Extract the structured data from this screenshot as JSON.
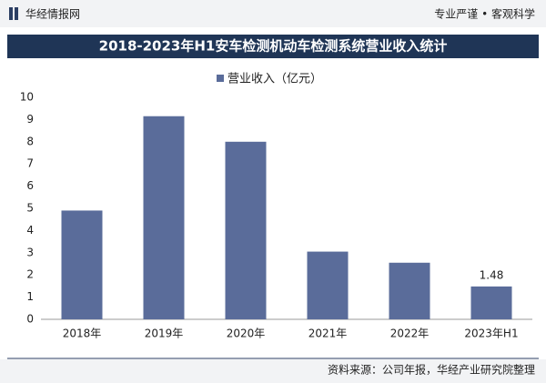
{
  "header": {
    "logo": "华经情报网",
    "slogan": "专业严谨 • 客观科学"
  },
  "chart_data": {
    "type": "bar",
    "title": "2018-2023年H1安车检测机动车检测系统营业收入统计",
    "categories": [
      "2018年",
      "2019年",
      "2020年",
      "2021年",
      "2022年",
      "2023年H1"
    ],
    "series": [
      {
        "name": "营业收入（亿元）",
        "color": "#5a6c9a",
        "values": [
          4.9,
          9.15,
          8.0,
          3.05,
          2.55,
          1.48
        ],
        "value_labels": [
          null,
          null,
          null,
          null,
          null,
          "1.48"
        ]
      }
    ],
    "ylim": [
      0,
      10
    ],
    "yticks": [
      0,
      1,
      2,
      3,
      4,
      5,
      6,
      7,
      8,
      9,
      10
    ],
    "grid": false
  },
  "footer": {
    "source": "资料来源：公司年报，华经产业研究院整理"
  }
}
